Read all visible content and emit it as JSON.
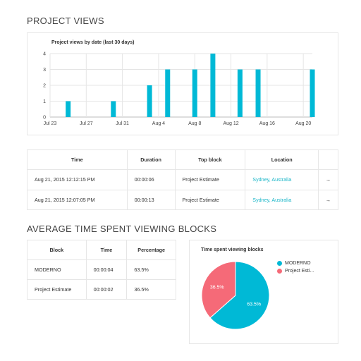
{
  "sections": {
    "project_views_title": "PROJECT VIEWS",
    "avg_time_title": "AVERAGE TIME SPENT VIEWING BLOCKS"
  },
  "colors": {
    "accent": "#00b9d6",
    "secondary": "#f56a78",
    "link": "#1ab6c8"
  },
  "views_table": {
    "headers": [
      "Time",
      "Duration",
      "Top block",
      "Location"
    ],
    "rows": [
      {
        "time": "Aug 21, 2015 12:12:15 PM",
        "duration": "00:00:06",
        "top_block": "Project Estimate",
        "location": "Sydney, Australia",
        "action_icon": "arrow-right-icon"
      },
      {
        "time": "Aug 21, 2015 12:07:05 PM",
        "duration": "00:00:13",
        "top_block": "Project Estimate",
        "location": "Sydney, Australia",
        "action_icon": "arrow-right-icon"
      }
    ]
  },
  "blocks_table": {
    "headers": [
      "Block",
      "Time",
      "Percentage"
    ],
    "rows": [
      {
        "block": "MODERNO",
        "time": "00:00:04",
        "percentage": "63.5%"
      },
      {
        "block": "Project Estimate",
        "time": "00:00:02",
        "percentage": "36.5%"
      }
    ]
  },
  "chart_data": [
    {
      "type": "bar",
      "title": "Project views by date (last 30 days)",
      "x": [
        "Jul 25",
        "Jul 30",
        "Aug 3",
        "Aug 5",
        "Aug 8",
        "Aug 10",
        "Aug 13",
        "Aug 15",
        "Aug 21"
      ],
      "values": [
        1,
        1,
        2,
        3,
        3,
        4,
        3,
        3,
        3
      ],
      "tick_labels": [
        "Jul 23",
        "Jul 27",
        "Jul 31",
        "Aug 4",
        "Aug 8",
        "Aug 12",
        "Aug 16",
        "Aug 20"
      ],
      "y_ticks": [
        "0",
        "1",
        "2",
        "3",
        "4"
      ],
      "ylim": [
        0,
        4
      ],
      "grid": true
    },
    {
      "type": "pie",
      "title": "Time spent viewing blocks",
      "labels": [
        "MODERNO",
        "Project Esti..."
      ],
      "values": [
        63.5,
        36.5
      ],
      "value_labels": [
        "63.5%",
        "36.5%"
      ],
      "legend": "right"
    }
  ]
}
